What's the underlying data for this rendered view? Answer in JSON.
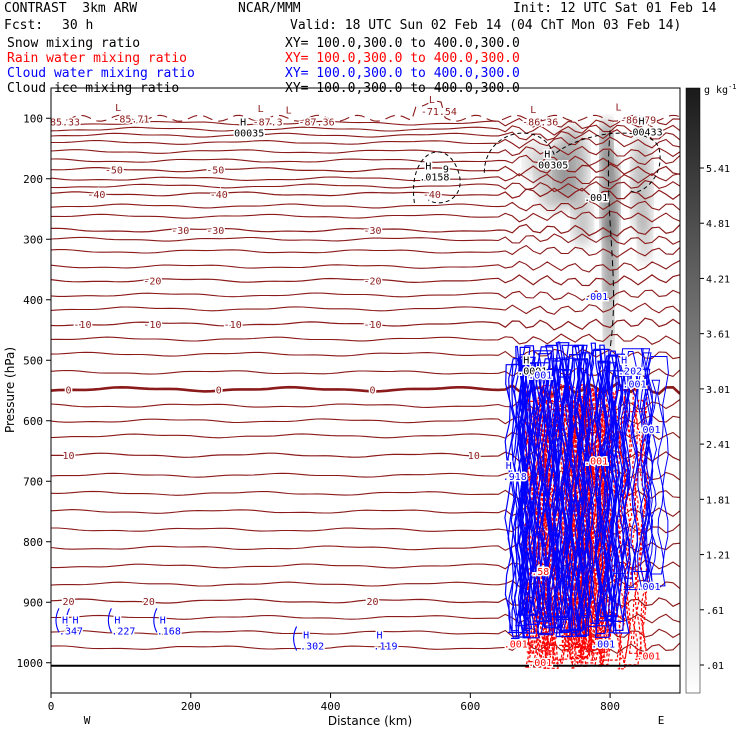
{
  "header": {
    "model": "CONTRAST  3km ARW",
    "center": "NCAR/MMM",
    "init": "Init: 12 UTC Sat 01 Feb 14",
    "fcst_label": "Fcst:",
    "fcst_value": "30 h",
    "valid": "Valid: 18 UTC Sun 02 Feb 14 (04 ChT Mon 03 Feb 14)"
  },
  "fields": [
    {
      "name": "Snow mixing ratio",
      "xy": "XY= 100.0,300.0 to 400.0,300.0",
      "color": "#000000"
    },
    {
      "name": "Rain water mixing ratio",
      "xy": "XY= 100.0,300.0 to 400.0,300.0",
      "color": "#ff0000"
    },
    {
      "name": "Cloud water mixing ratio",
      "xy": "XY= 100.0,300.0 to 400.0,300.0",
      "color": "#0000ff"
    },
    {
      "name": "Cloud ice mixing ratio",
      "xy": "XY= 100.0,300.0 to 400.0,300.0",
      "color": "#000000"
    }
  ],
  "chart_data": {
    "type": "contour-cross-section",
    "xlabel": "Distance (km)",
    "ylabel": "Pressure (hPa)",
    "xlim": [
      0,
      900
    ],
    "ylim": [
      1050,
      50
    ],
    "x_ticks": [
      "0",
      "200",
      "400",
      "600",
      "800"
    ],
    "x_tick_values": [
      0,
      200,
      400,
      600,
      800
    ],
    "y_ticks": [
      "100",
      "200",
      "300",
      "400",
      "500",
      "600",
      "700",
      "800",
      "900",
      "1000"
    ],
    "y_tick_values": [
      100,
      200,
      300,
      400,
      500,
      600,
      700,
      800,
      900,
      1000
    ],
    "endpoint_left": "W",
    "endpoint_right": "E",
    "colorbar": {
      "unit": "g kg",
      "unit_exp": "-1",
      "labels": [
        "5.41",
        "4.81",
        "4.21",
        "3.61",
        "3.01",
        "2.41",
        "1.81",
        "1.21",
        ".61",
        ".01"
      ],
      "values": [
        5.41,
        4.81,
        4.21,
        3.61,
        3.01,
        2.41,
        1.81,
        1.21,
        0.61,
        0.01
      ]
    },
    "isotherms": [
      {
        "temp": -50,
        "pressure": 185,
        "labels": [
          {
            "x": 90,
            "text": "-50"
          },
          {
            "x": 235,
            "text": "-50"
          }
        ]
      },
      {
        "temp": -40,
        "pressure": 225,
        "labels": [
          {
            "x": 65,
            "text": "-40"
          },
          {
            "x": 240,
            "text": "-40"
          },
          {
            "x": 545,
            "text": "-40"
          }
        ]
      },
      {
        "temp": -30,
        "pressure": 285,
        "labels": [
          {
            "x": 185,
            "text": "-30"
          },
          {
            "x": 235,
            "text": "-30"
          },
          {
            "x": 460,
            "text": "-30"
          }
        ]
      },
      {
        "temp": -20,
        "pressure": 368,
        "labels": [
          {
            "x": 145,
            "text": "-20"
          },
          {
            "x": 460,
            "text": "-20"
          }
        ]
      },
      {
        "temp": -10,
        "pressure": 440,
        "labels": [
          {
            "x": 45,
            "text": "-10"
          },
          {
            "x": 145,
            "text": "-10"
          },
          {
            "x": 260,
            "text": "-10"
          },
          {
            "x": 460,
            "text": "-10"
          }
        ]
      },
      {
        "temp": 0,
        "pressure": 548,
        "labels": [
          {
            "x": 25,
            "text": "0"
          },
          {
            "x": 240,
            "text": "0"
          },
          {
            "x": 460,
            "text": "0"
          }
        ]
      },
      {
        "temp": 10,
        "pressure": 657,
        "labels": [
          {
            "x": 25,
            "text": "10"
          },
          {
            "x": 605,
            "text": "10"
          }
        ]
      },
      {
        "temp": 20,
        "pressure": 898,
        "labels": [
          {
            "x": 25,
            "text": "20"
          },
          {
            "x": 140,
            "text": "20"
          },
          {
            "x": 460,
            "text": "20"
          }
        ]
      }
    ],
    "tropopause_labels": [
      {
        "x": 0,
        "p": 105,
        "text": "85.33"
      },
      {
        "x": 115,
        "p": 100,
        "text": "-85.71"
      },
      {
        "x": 310,
        "p": 105,
        "text": "-87.3"
      },
      {
        "x": 380,
        "p": 105,
        "text": "-87.36"
      },
      {
        "x": 555,
        "p": 88,
        "text": "-71.54"
      },
      {
        "x": 700,
        "p": 105,
        "text": "-86.36"
      },
      {
        "x": 840,
        "p": 102,
        "text": "-86.79"
      }
    ],
    "extrema": [
      {
        "kind": "L",
        "x": 96,
        "p": 88,
        "value": ""
      },
      {
        "kind": "L",
        "x": 300,
        "p": 90,
        "value": ""
      },
      {
        "kind": "L",
        "x": 340,
        "p": 92,
        "value": ""
      },
      {
        "kind": "L",
        "x": 545,
        "p": 75,
        "value": ""
      },
      {
        "kind": "L",
        "x": 690,
        "p": 91,
        "value": ""
      },
      {
        "kind": "L",
        "x": 812,
        "p": 87,
        "value": ""
      },
      {
        "kind": "H",
        "x": 275,
        "p": 112,
        "value": "00035",
        "color": "#000000"
      },
      {
        "kind": "H",
        "x": 540,
        "p": 185,
        "value": ".0158",
        "color": "#000000"
      },
      {
        "kind": "H",
        "x": 710,
        "p": 165,
        "value": "00305",
        "color": "#000000"
      },
      {
        "kind": "H",
        "x": 845,
        "p": 110,
        "value": "00433",
        "color": "#000000"
      },
      {
        "kind": "H",
        "x": 680,
        "p": 505,
        "value": ".0001",
        "color": "#000000"
      },
      {
        "kind": "H",
        "x": 820,
        "p": 505,
        "value": ".202",
        "color": "#0000ff"
      },
      {
        "kind": "H",
        "x": 655,
        "p": 680,
        "value": ".918",
        "color": "#0000ff"
      },
      {
        "kind": "H",
        "x": 20,
        "p": 935,
        "value": ".347",
        "color": "#0000ff"
      },
      {
        "kind": "H",
        "x": 35,
        "p": 935,
        "value": "",
        "color": "#0000ff"
      },
      {
        "kind": "H",
        "x": 95,
        "p": 935,
        "value": ".227",
        "color": "#0000ff"
      },
      {
        "kind": "H",
        "x": 160,
        "p": 935,
        "value": ".168",
        "color": "#0000ff"
      },
      {
        "kind": "H",
        "x": 365,
        "p": 960,
        "value": ".302",
        "color": "#0000ff"
      },
      {
        "kind": "H",
        "x": 470,
        "p": 960,
        "value": ".119",
        "color": "#0000ff"
      }
    ],
    "contour_labels": [
      {
        "x": 565,
        "p": 190,
        "text": "9",
        "color": "#000000"
      },
      {
        "x": 780,
        "p": 237,
        "text": ".001",
        "color": "#000000"
      },
      {
        "x": 780,
        "p": 400,
        "text": ".001",
        "color": "#0000ff"
      },
      {
        "x": 700,
        "p": 530,
        "text": ".001",
        "color": "#0000ff"
      },
      {
        "x": 835,
        "p": 545,
        "text": ".001",
        "color": "#0000ff"
      },
      {
        "x": 855,
        "p": 620,
        "text": ".001",
        "color": "#0000ff"
      },
      {
        "x": 780,
        "p": 672,
        "text": ".001",
        "color": "#ff0000"
      },
      {
        "x": 700,
        "p": 855,
        "text": ".58",
        "color": "#ff0000"
      },
      {
        "x": 855,
        "p": 880,
        "text": ".001",
        "color": "#0000ff"
      },
      {
        "x": 665,
        "p": 975,
        "text": ".001",
        "color": "#ff0000"
      },
      {
        "x": 790,
        "p": 975,
        "text": ".001",
        "color": "#0000ff"
      },
      {
        "x": 700,
        "p": 1005,
        "text": ".001",
        "color": "#ff0000"
      },
      {
        "x": 855,
        "p": 995,
        "text": ".001",
        "color": "#ff0000"
      }
    ]
  }
}
